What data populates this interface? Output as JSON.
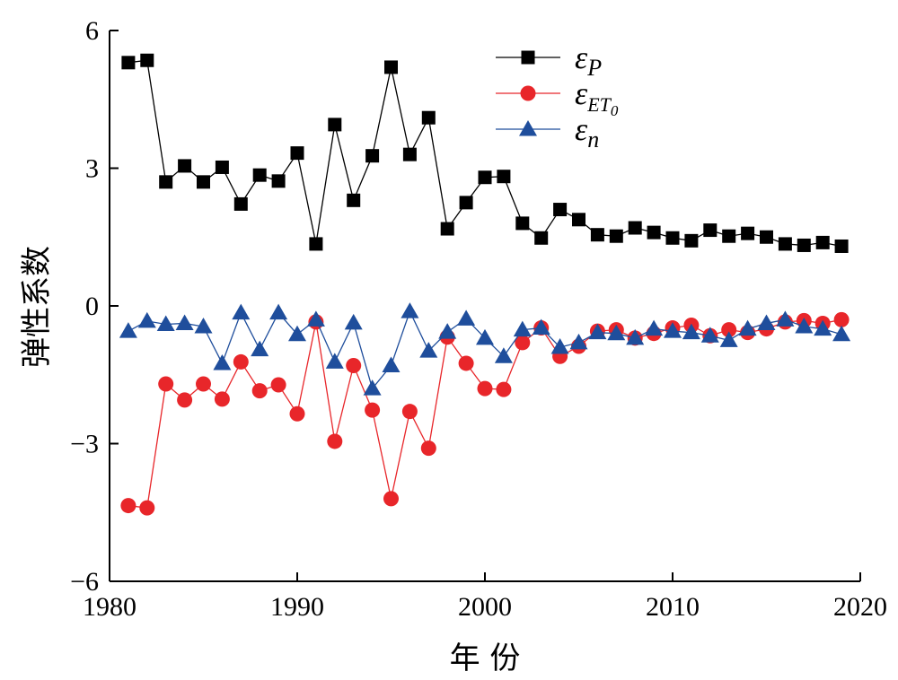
{
  "chart_data": {
    "type": "line",
    "xlabel": "年 份",
    "ylabel": "弹性系数",
    "xlim": [
      1980,
      2020
    ],
    "ylim": [
      -6,
      6
    ],
    "xticks": [
      1980,
      1990,
      2000,
      2010,
      2020
    ],
    "yticks": [
      6,
      3,
      0,
      -3,
      -6
    ],
    "ytick_labels": [
      "6",
      "3",
      "0",
      "−3",
      "−6"
    ],
    "grid": false,
    "legend_position": "top-right",
    "x": [
      1981,
      1982,
      1983,
      1984,
      1985,
      1986,
      1987,
      1988,
      1989,
      1990,
      1991,
      1992,
      1993,
      1994,
      1995,
      1996,
      1997,
      1998,
      1999,
      2000,
      2001,
      2002,
      2003,
      2004,
      2005,
      2006,
      2007,
      2008,
      2009,
      2010,
      2011,
      2012,
      2013,
      2014,
      2015,
      2016,
      2017,
      2018,
      2019
    ],
    "series": [
      {
        "legend_symbol": "ε",
        "legend_subscript": "P",
        "color": "#000000",
        "marker": "square",
        "values": [
          5.3,
          5.35,
          2.7,
          3.05,
          2.7,
          3.02,
          2.22,
          2.85,
          2.72,
          3.33,
          1.35,
          3.95,
          2.3,
          3.27,
          5.2,
          3.3,
          4.1,
          1.68,
          2.25,
          2.8,
          2.82,
          1.8,
          1.48,
          2.1,
          1.88,
          1.55,
          1.52,
          1.7,
          1.6,
          1.48,
          1.42,
          1.65,
          1.52,
          1.58,
          1.5,
          1.35,
          1.32,
          1.38,
          1.3
        ]
      },
      {
        "legend_symbol": "ε",
        "legend_subscript": "ET",
        "legend_subscript2": "0",
        "color": "#e8262a",
        "marker": "circle",
        "values": [
          -4.35,
          -4.4,
          -1.7,
          -2.05,
          -1.7,
          -2.03,
          -1.22,
          -1.85,
          -1.72,
          -2.35,
          -0.35,
          -2.95,
          -1.3,
          -2.27,
          -4.2,
          -2.3,
          -3.1,
          -0.68,
          -1.25,
          -1.8,
          -1.82,
          -0.8,
          -0.48,
          -1.1,
          -0.88,
          -0.55,
          -0.52,
          -0.7,
          -0.6,
          -0.48,
          -0.42,
          -0.65,
          -0.52,
          -0.58,
          -0.5,
          -0.35,
          -0.32,
          -0.38,
          -0.3
        ]
      },
      {
        "legend_symbol": "ε",
        "legend_subscript": "n",
        "color": "#1f4e9c",
        "marker": "triangle",
        "values": [
          -0.55,
          -0.33,
          -0.4,
          -0.38,
          -0.45,
          -1.25,
          -0.15,
          -0.95,
          -0.15,
          -0.62,
          -0.3,
          -1.22,
          -0.37,
          -1.8,
          -1.3,
          -0.12,
          -0.98,
          -0.57,
          -0.28,
          -0.7,
          -1.1,
          -0.52,
          -0.48,
          -0.9,
          -0.8,
          -0.58,
          -0.6,
          -0.7,
          -0.5,
          -0.55,
          -0.58,
          -0.65,
          -0.75,
          -0.5,
          -0.38,
          -0.3,
          -0.45,
          -0.5,
          -0.62
        ]
      }
    ]
  }
}
